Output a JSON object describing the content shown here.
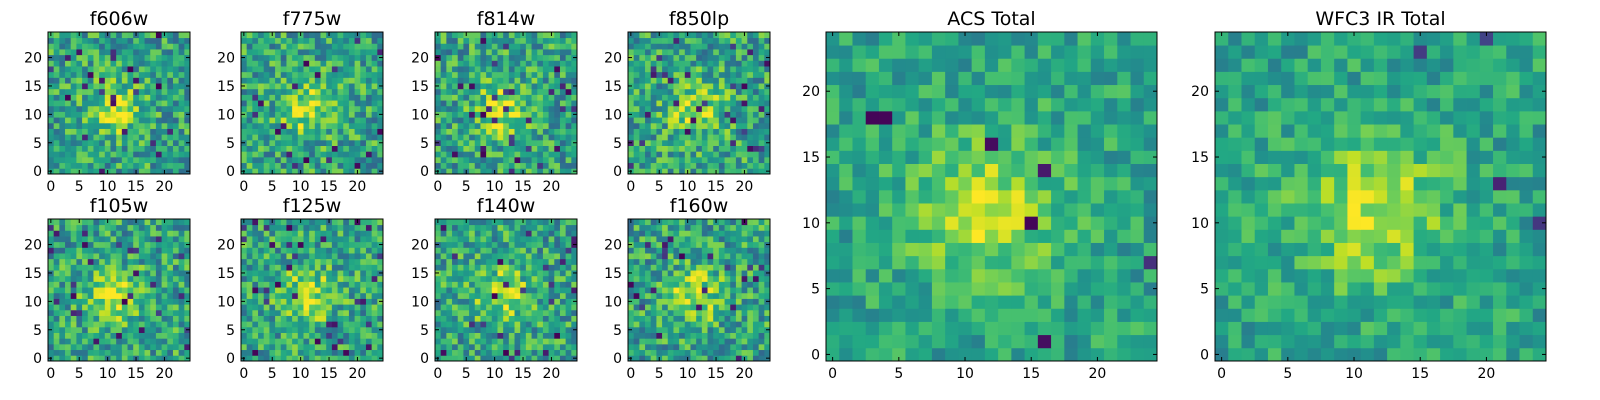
{
  "chart_data": [
    {
      "type": "heatmap",
      "title": "f606w",
      "x_ticks": [
        0,
        5,
        10,
        15,
        20
      ],
      "y_ticks": [
        0,
        5,
        10,
        15,
        20
      ],
      "xlim": [
        -0.5,
        24.5
      ],
      "ylim": [
        -0.5,
        24.5
      ],
      "grid_size": [
        25,
        25
      ],
      "colormap": "viridis",
      "seed": 606
    },
    {
      "type": "heatmap",
      "title": "f775w",
      "x_ticks": [
        0,
        5,
        10,
        15,
        20
      ],
      "y_ticks": [
        0,
        5,
        10,
        15,
        20
      ],
      "xlim": [
        -0.5,
        24.5
      ],
      "ylim": [
        -0.5,
        24.5
      ],
      "grid_size": [
        25,
        25
      ],
      "colormap": "viridis",
      "seed": 775
    },
    {
      "type": "heatmap",
      "title": "f814w",
      "x_ticks": [
        0,
        5,
        10,
        15,
        20
      ],
      "y_ticks": [
        0,
        5,
        10,
        15,
        20
      ],
      "xlim": [
        -0.5,
        24.5
      ],
      "ylim": [
        -0.5,
        24.5
      ],
      "grid_size": [
        25,
        25
      ],
      "colormap": "viridis",
      "seed": 814
    },
    {
      "type": "heatmap",
      "title": "f850lp",
      "x_ticks": [
        0,
        5,
        10,
        15,
        20
      ],
      "y_ticks": [
        0,
        5,
        10,
        15,
        20
      ],
      "xlim": [
        -0.5,
        24.5
      ],
      "ylim": [
        -0.5,
        24.5
      ],
      "grid_size": [
        25,
        25
      ],
      "colormap": "viridis",
      "seed": 850
    },
    {
      "type": "heatmap",
      "title": "f105w",
      "x_ticks": [
        0,
        5,
        10,
        15,
        20
      ],
      "y_ticks": [
        0,
        5,
        10,
        15,
        20
      ],
      "xlim": [
        -0.5,
        24.5
      ],
      "ylim": [
        -0.5,
        24.5
      ],
      "grid_size": [
        25,
        25
      ],
      "colormap": "viridis",
      "seed": 105
    },
    {
      "type": "heatmap",
      "title": "f125w",
      "x_ticks": [
        0,
        5,
        10,
        15,
        20
      ],
      "y_ticks": [
        0,
        5,
        10,
        15,
        20
      ],
      "xlim": [
        -0.5,
        24.5
      ],
      "ylim": [
        -0.5,
        24.5
      ],
      "grid_size": [
        25,
        25
      ],
      "colormap": "viridis",
      "seed": 125
    },
    {
      "type": "heatmap",
      "title": "f140w",
      "x_ticks": [
        0,
        5,
        10,
        15,
        20
      ],
      "y_ticks": [
        0,
        5,
        10,
        15,
        20
      ],
      "xlim": [
        -0.5,
        24.5
      ],
      "ylim": [
        -0.5,
        24.5
      ],
      "grid_size": [
        25,
        25
      ],
      "colormap": "viridis",
      "seed": 140
    },
    {
      "type": "heatmap",
      "title": "f160w",
      "x_ticks": [
        0,
        5,
        10,
        15,
        20
      ],
      "y_ticks": [
        0,
        5,
        10,
        15,
        20
      ],
      "xlim": [
        -0.5,
        24.5
      ],
      "ylim": [
        -0.5,
        24.5
      ],
      "grid_size": [
        25,
        25
      ],
      "colormap": "viridis",
      "seed": 160
    },
    {
      "type": "heatmap",
      "title": "ACS Total",
      "x_ticks": [
        0,
        5,
        10,
        15,
        20
      ],
      "y_ticks": [
        0,
        5,
        10,
        15,
        20
      ],
      "xlim": [
        -0.5,
        24.5
      ],
      "ylim": [
        -0.5,
        24.5
      ],
      "grid_size": [
        25,
        25
      ],
      "colormap": "viridis",
      "seed": 1001
    },
    {
      "type": "heatmap",
      "title": "WFC3 IR Total",
      "x_ticks": [
        0,
        5,
        10,
        15,
        20
      ],
      "y_ticks": [
        0,
        5,
        10,
        15,
        20
      ],
      "xlim": [
        -0.5,
        24.5
      ],
      "ylim": [
        -0.5,
        24.5
      ],
      "grid_size": [
        25,
        25
      ],
      "colormap": "viridis",
      "seed": 2002
    }
  ]
}
